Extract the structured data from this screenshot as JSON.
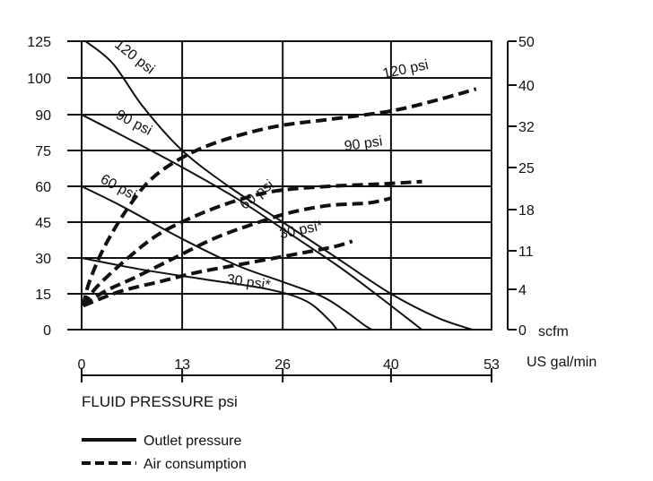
{
  "chart_data": {
    "type": "line",
    "xlabel": "FLUID PRESSURE psi",
    "x_unit": "US gal/min",
    "x_ticks": [
      0,
      13,
      26,
      40,
      53
    ],
    "xlim": [
      0,
      53
    ],
    "y_left_ticks": [
      0,
      15,
      30,
      45,
      60,
      75,
      90,
      100,
      125
    ],
    "y_right_ticks": [
      0,
      4,
      11,
      18,
      25,
      32,
      40,
      50
    ],
    "y_right_unit": "scfm",
    "grid": true,
    "legend": {
      "placement": "bottom-left",
      "entries": [
        {
          "label": "Outlet pressure",
          "style": "solid"
        },
        {
          "label": "Air consumption",
          "style": "dashed"
        }
      ]
    },
    "outlet_pressure_series": [
      {
        "name": "120 psi",
        "label_pos": [
          6.5,
          112
        ],
        "label_rot": 38,
        "points": [
          [
            0.5,
            125
          ],
          [
            4,
            110
          ],
          [
            8,
            92
          ],
          [
            13,
            75
          ],
          [
            19,
            60
          ],
          [
            26,
            45
          ],
          [
            33,
            30
          ],
          [
            40,
            15
          ],
          [
            46,
            5
          ],
          [
            50.5,
            0
          ]
        ]
      },
      {
        "name": "90 psi",
        "label_pos": [
          6.5,
          85
        ],
        "label_rot": 28,
        "points": [
          [
            0,
            90
          ],
          [
            6,
            80
          ],
          [
            13,
            68
          ],
          [
            20,
            55
          ],
          [
            27,
            40
          ],
          [
            33,
            27
          ],
          [
            38,
            15
          ],
          [
            42,
            5
          ],
          [
            44,
            0
          ]
        ]
      },
      {
        "name": "60 psi",
        "label_pos": [
          4.5,
          58
        ],
        "label_rot": 28,
        "points": [
          [
            0,
            60
          ],
          [
            5,
            52
          ],
          [
            13,
            38
          ],
          [
            20,
            27
          ],
          [
            26,
            20
          ],
          [
            31,
            14
          ],
          [
            34,
            8
          ],
          [
            36.5,
            2
          ],
          [
            37.5,
            0
          ]
        ]
      },
      {
        "name": "30 psi*",
        "label_pos": [
          21.5,
          18
        ],
        "label_rot": 8,
        "points": [
          [
            0,
            30
          ],
          [
            8,
            25
          ],
          [
            16,
            21
          ],
          [
            24,
            17
          ],
          [
            29,
            12
          ],
          [
            32,
            4
          ],
          [
            33,
            0
          ]
        ]
      }
    ],
    "air_consumption_series": [
      {
        "name": "120 psi",
        "label_pos": [
          42,
          103
        ],
        "label_rot": -12,
        "points": [
          [
            0.2,
            10
          ],
          [
            1,
            20
          ],
          [
            3,
            35
          ],
          [
            6,
            51
          ],
          [
            9,
            63
          ],
          [
            13,
            72
          ],
          [
            18,
            79
          ],
          [
            25,
            85
          ],
          [
            32,
            88
          ],
          [
            40,
            91
          ],
          [
            46,
            94
          ],
          [
            51,
            97
          ]
        ]
      },
      {
        "name": "90 psi",
        "label_pos": [
          36.5,
          76
        ],
        "label_rot": -8,
        "points": [
          [
            0.2,
            10
          ],
          [
            2,
            18
          ],
          [
            6,
            30
          ],
          [
            10,
            40
          ],
          [
            15,
            48
          ],
          [
            20,
            54
          ],
          [
            25,
            58
          ],
          [
            32,
            60
          ],
          [
            39,
            61
          ],
          [
            44,
            62
          ]
        ]
      },
      {
        "name": "60 psi",
        "label_pos": [
          23,
          55
        ],
        "label_rot": -38,
        "points": [
          [
            0.2,
            10
          ],
          [
            3,
            16
          ],
          [
            7,
            22
          ],
          [
            12,
            30
          ],
          [
            17,
            38
          ],
          [
            22,
            44
          ],
          [
            27,
            49
          ],
          [
            32,
            52
          ],
          [
            37,
            53
          ],
          [
            40,
            55
          ]
        ]
      },
      {
        "name": "30 psi*",
        "label_pos": [
          28.5,
          40
        ],
        "label_rot": -12,
        "points": [
          [
            0.2,
            10
          ],
          [
            5,
            16
          ],
          [
            10,
            20
          ],
          [
            15,
            24
          ],
          [
            20,
            27
          ],
          [
            25,
            30
          ],
          [
            30,
            33
          ],
          [
            33,
            35
          ],
          [
            35,
            37
          ]
        ]
      }
    ]
  }
}
